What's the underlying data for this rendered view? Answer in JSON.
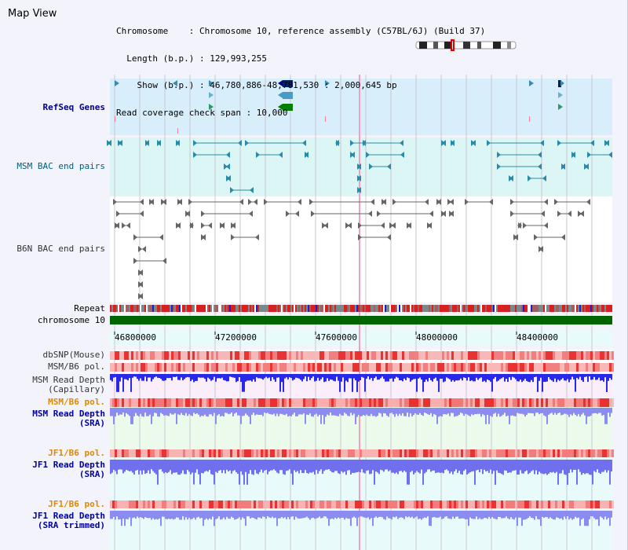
{
  "view": {
    "title": "Map View"
  },
  "info": {
    "line1": "Chromosome    : Chromosome 10, reference assembly (C57BL/6J) (Build 37)",
    "line2": "  Length (b.p.) : 129,993,255",
    "line3": "    Show (b.p.) : 46,780,886-48,781,530 : 2,000,645 bp",
    "line4": "Read coverage check span : 10,000"
  },
  "tracks": {
    "refseq": "RefSeq Genes",
    "msm_bac": "MSM BAC end pairs",
    "b6n_bac": "B6N BAC end pairs",
    "repeat": "Repeat",
    "chromosome": "chromosome 10",
    "dbsnp": "dbSNP(Mouse)",
    "msm_b6_pol_1": "MSM/B6 pol.",
    "msm_depth_cap_1": "MSM Read Depth",
    "msm_depth_cap_2": "(Capillary)",
    "msm_b6_pol_2": "MSM/B6 pol.",
    "msm_depth_sra_1": "MSM Read Depth",
    "msm_depth_sra_2": "(SRA)",
    "jf1_b6_pol_1": "JF1/B6 pol.",
    "jf1_depth_sra_1": "JF1 Read Depth",
    "jf1_depth_sra_2": "(SRA)",
    "jf1_b6_pol_2": "JF1/B6 pol.",
    "jf1_depth_trim_1": "JF1 Read Depth",
    "jf1_depth_trim_2": "(SRA trimmed)"
  },
  "axis": {
    "ticks": [
      "46800000",
      "47200000",
      "47600000",
      "48000000",
      "48400000"
    ]
  },
  "colors": {
    "refseq_bg": "#d8eefa",
    "msm_bg": "#dcf5f5",
    "b6n_bg": "#ffffff",
    "chromosome_bar": "#006400",
    "depth_blue": "#3a3aee",
    "depth_light": "#8a8af0",
    "pol_red": "#e83030"
  }
}
